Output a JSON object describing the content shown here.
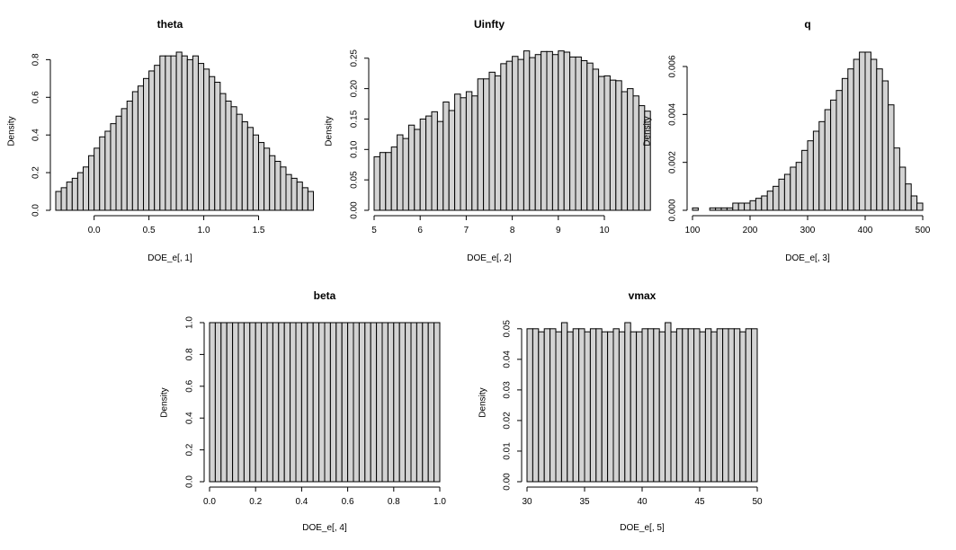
{
  "chart_data": [
    {
      "type": "bar",
      "title": "theta",
      "xlabel": "DOE_e[, 1]",
      "ylabel": "Density",
      "xlim": [
        -0.35,
        1.75
      ],
      "ylim": [
        0,
        0.84
      ],
      "xticks": [
        0.0,
        0.5,
        1.0,
        1.5
      ],
      "xtick_labels": [
        "0.0",
        "0.5",
        "1.0",
        "1.5"
      ],
      "yticks": [
        0.0,
        0.2,
        0.4,
        0.6,
        0.8
      ],
      "ytick_labels": [
        "0.0",
        "0.2",
        "0.4",
        "0.6",
        "0.8"
      ],
      "bin_start": -0.35,
      "bin_width": 0.05,
      "values": [
        0.1,
        0.12,
        0.15,
        0.17,
        0.2,
        0.23,
        0.29,
        0.33,
        0.39,
        0.42,
        0.46,
        0.5,
        0.54,
        0.58,
        0.63,
        0.66,
        0.7,
        0.74,
        0.77,
        0.82,
        0.82,
        0.82,
        0.84,
        0.82,
        0.8,
        0.82,
        0.78,
        0.75,
        0.71,
        0.68,
        0.62,
        0.58,
        0.55,
        0.51,
        0.47,
        0.44,
        0.4,
        0.36,
        0.33,
        0.29,
        0.26,
        0.23,
        0.19,
        0.17,
        0.15,
        0.12,
        0.1
      ]
    },
    {
      "type": "bar",
      "title": "Uinfty",
      "xlabel": "DOE_e[, 2]",
      "ylabel": "Density",
      "xlim": [
        5,
        10
      ],
      "ylim": [
        0,
        0.26
      ],
      "xticks": [
        5,
        6,
        7,
        8,
        9,
        10
      ],
      "xtick_labels": [
        "5",
        "6",
        "7",
        "8",
        "9",
        "10"
      ],
      "yticks": [
        0.0,
        0.05,
        0.1,
        0.15,
        0.2,
        0.25
      ],
      "ytick_labels": [
        "0.00",
        "0.05",
        "0.10",
        "0.15",
        "0.20",
        "0.25"
      ],
      "bin_start": 5,
      "bin_width": 0.125,
      "values": [
        0.088,
        0.095,
        0.095,
        0.104,
        0.124,
        0.118,
        0.14,
        0.133,
        0.15,
        0.155,
        0.162,
        0.146,
        0.178,
        0.164,
        0.191,
        0.185,
        0.195,
        0.188,
        0.216,
        0.216,
        0.227,
        0.221,
        0.241,
        0.245,
        0.253,
        0.248,
        0.262,
        0.251,
        0.256,
        0.261,
        0.261,
        0.256,
        0.262,
        0.26,
        0.252,
        0.252,
        0.246,
        0.242,
        0.232,
        0.22,
        0.221,
        0.214,
        0.213,
        0.195,
        0.2,
        0.188,
        0.172,
        0.163
      ]
    },
    {
      "type": "bar",
      "title": "q",
      "xlabel": "DOE_e[, 3]",
      "ylabel": "Density",
      "xlim": [
        100,
        500
      ],
      "ylim": [
        0,
        0.0066
      ],
      "xticks": [
        100,
        200,
        300,
        400,
        500
      ],
      "xtick_labels": [
        "100",
        "200",
        "300",
        "400",
        "500"
      ],
      "yticks": [
        0.0,
        0.002,
        0.004,
        0.006
      ],
      "ytick_labels": [
        "0.000",
        "0.002",
        "0.004",
        "0.006"
      ],
      "bin_start": 100,
      "bin_width": 10,
      "values": [
        0.0001,
        0,
        0,
        0.0001,
        0.0001,
        0.0001,
        0.0001,
        0.0003,
        0.0003,
        0.0003,
        0.0004,
        0.0005,
        0.0006,
        0.0008,
        0.001,
        0.0013,
        0.0015,
        0.0018,
        0.002,
        0.0025,
        0.0029,
        0.0033,
        0.0037,
        0.0042,
        0.0046,
        0.005,
        0.0055,
        0.0059,
        0.0063,
        0.0066,
        0.0066,
        0.0063,
        0.0059,
        0.0054,
        0.0044,
        0.0026,
        0.0018,
        0.0011,
        0.0006,
        0.0003
      ]
    },
    {
      "type": "bar",
      "title": "beta",
      "xlabel": "DOE_e[, 4]",
      "ylabel": "Density",
      "xlim": [
        0,
        1
      ],
      "ylim": [
        0,
        1.0
      ],
      "xticks": [
        0.0,
        0.2,
        0.4,
        0.6,
        0.8,
        1.0
      ],
      "xtick_labels": [
        "0.0",
        "0.2",
        "0.4",
        "0.6",
        "0.8",
        "1.0"
      ],
      "yticks": [
        0.0,
        0.2,
        0.4,
        0.6,
        0.8,
        1.0
      ],
      "ytick_labels": [
        "0.0",
        "0.2",
        "0.4",
        "0.6",
        "0.8",
        "1.0"
      ],
      "bin_start": 0,
      "bin_width": 0.025,
      "values": [
        1,
        1,
        1,
        1,
        1,
        1,
        1,
        1,
        1,
        1,
        1,
        1,
        1,
        1,
        1,
        1,
        1,
        1,
        1,
        1,
        1,
        1,
        1,
        1,
        1,
        1,
        1,
        1,
        1,
        1,
        1,
        1,
        1,
        1,
        1,
        1,
        1,
        1,
        1,
        1
      ]
    },
    {
      "type": "bar",
      "title": "vmax",
      "xlabel": "DOE_e[, 5]",
      "ylabel": "Density",
      "xlim": [
        30,
        50
      ],
      "ylim": [
        0,
        0.052
      ],
      "xticks": [
        30,
        35,
        40,
        45,
        50
      ],
      "xtick_labels": [
        "30",
        "35",
        "40",
        "45",
        "50"
      ],
      "yticks": [
        0.0,
        0.01,
        0.02,
        0.03,
        0.04,
        0.05
      ],
      "ytick_labels": [
        "0.00",
        "0.01",
        "0.02",
        "0.03",
        "0.04",
        "0.05"
      ],
      "bin_start": 30,
      "bin_width": 0.5,
      "values": [
        0.05,
        0.05,
        0.049,
        0.05,
        0.05,
        0.049,
        0.052,
        0.049,
        0.05,
        0.05,
        0.049,
        0.05,
        0.05,
        0.049,
        0.049,
        0.05,
        0.049,
        0.052,
        0.049,
        0.049,
        0.05,
        0.05,
        0.05,
        0.049,
        0.052,
        0.049,
        0.05,
        0.05,
        0.05,
        0.05,
        0.049,
        0.05,
        0.049,
        0.05,
        0.05,
        0.05,
        0.05,
        0.049,
        0.05,
        0.05
      ]
    }
  ],
  "colors": {
    "bar_fill": "#d3d3d3",
    "bar_stroke": "#000000",
    "axis": "#000000",
    "background": "#ffffff"
  }
}
